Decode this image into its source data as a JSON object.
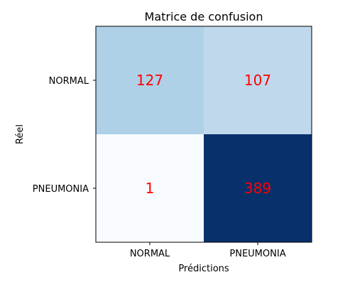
{
  "chart_data": {
    "type": "heatmap",
    "title": "Matrice de confusion",
    "xlabel": "Prédictions",
    "ylabel": "Réel",
    "x_categories": [
      "NORMAL",
      "PNEUMONIA"
    ],
    "y_categories": [
      "NORMAL",
      "PNEUMONIA"
    ],
    "values": [
      [
        127,
        107
      ],
      [
        1,
        389
      ]
    ],
    "colormap": "Blues",
    "value_range": [
      1,
      389
    ],
    "cell_label_color": "#ff0000",
    "grid": false
  }
}
